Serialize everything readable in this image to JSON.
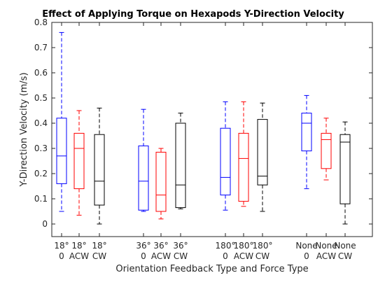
{
  "chart_data": {
    "type": "box",
    "title": "Effect of Applying Torque on Hexapods Y-Direction Velocity",
    "xlabel": "Orientation Feedback Type and Force Type",
    "ylabel": "Y-Direction Velocity (m/s)",
    "ylim": [
      -0.05,
      0.8
    ],
    "yticks": [
      0,
      0.1,
      0.2,
      0.3,
      0.4,
      0.5,
      0.6,
      0.7,
      0.8
    ],
    "ytick_labels": [
      "0",
      "0.1",
      "0.2",
      "0.3",
      "0.4",
      "0.5",
      "0.6",
      "0.7",
      "0.8"
    ],
    "grid": false,
    "colors": {
      "0": "#0000ff",
      "ACW": "#ff0000",
      "CW": "#000000"
    },
    "boxes": [
      {
        "group": "18°",
        "force": "0",
        "color": "#0000ff",
        "label1": "18°",
        "label2": "0",
        "whisker_low": 0.05,
        "q1": 0.16,
        "median": 0.27,
        "q3": 0.42,
        "whisker_high": 0.76
      },
      {
        "group": "18°",
        "force": "ACW",
        "color": "#ff0000",
        "label1": "18°",
        "label2": "ACW",
        "whisker_low": 0.035,
        "q1": 0.14,
        "median": 0.3,
        "q3": 0.36,
        "whisker_high": 0.45
      },
      {
        "group": "18°",
        "force": "CW",
        "color": "#000000",
        "label1": "18°",
        "label2": "CW",
        "whisker_low": 0.0,
        "q1": 0.075,
        "median": 0.17,
        "q3": 0.355,
        "whisker_high": 0.46
      },
      {
        "group": "36°",
        "force": "0",
        "color": "#0000ff",
        "label1": "36°",
        "label2": "0",
        "whisker_low": 0.05,
        "q1": 0.055,
        "median": 0.17,
        "q3": 0.31,
        "whisker_high": 0.455
      },
      {
        "group": "36°",
        "force": "ACW",
        "color": "#ff0000",
        "label1": "36°",
        "label2": "ACW",
        "whisker_low": 0.02,
        "q1": 0.05,
        "median": 0.115,
        "q3": 0.285,
        "whisker_high": 0.3
      },
      {
        "group": "36°",
        "force": "CW",
        "color": "#000000",
        "label1": "36°",
        "label2": "CW",
        "whisker_low": 0.06,
        "q1": 0.065,
        "median": 0.155,
        "q3": 0.4,
        "whisker_high": 0.44
      },
      {
        "group": "180°",
        "force": "0",
        "color": "#0000ff",
        "label1": "180°",
        "label2": "0",
        "whisker_low": 0.055,
        "q1": 0.115,
        "median": 0.185,
        "q3": 0.38,
        "whisker_high": 0.485
      },
      {
        "group": "180°",
        "force": "ACW",
        "color": "#ff0000",
        "label1": "180°",
        "label2": "ACW",
        "whisker_low": 0.07,
        "q1": 0.09,
        "median": 0.26,
        "q3": 0.36,
        "whisker_high": 0.485
      },
      {
        "group": "180°",
        "force": "CW",
        "color": "#000000",
        "label1": "180°",
        "label2": "CW",
        "whisker_low": 0.05,
        "q1": 0.155,
        "median": 0.19,
        "q3": 0.415,
        "whisker_high": 0.48
      },
      {
        "group": "None",
        "force": "0",
        "color": "#0000ff",
        "label1": "None",
        "label2": "0",
        "whisker_low": 0.14,
        "q1": 0.29,
        "median": 0.4,
        "q3": 0.44,
        "whisker_high": 0.51
      },
      {
        "group": "None",
        "force": "ACW",
        "color": "#ff0000",
        "label1": "None",
        "label2": "ACW",
        "whisker_low": 0.175,
        "q1": 0.22,
        "median": 0.335,
        "q3": 0.36,
        "whisker_high": 0.42
      },
      {
        "group": "None",
        "force": "CW",
        "color": "#000000",
        "label1": "None",
        "label2": "CW",
        "whisker_low": 0.0,
        "q1": 0.08,
        "median": 0.325,
        "q3": 0.355,
        "whisker_high": 0.405
      }
    ]
  }
}
